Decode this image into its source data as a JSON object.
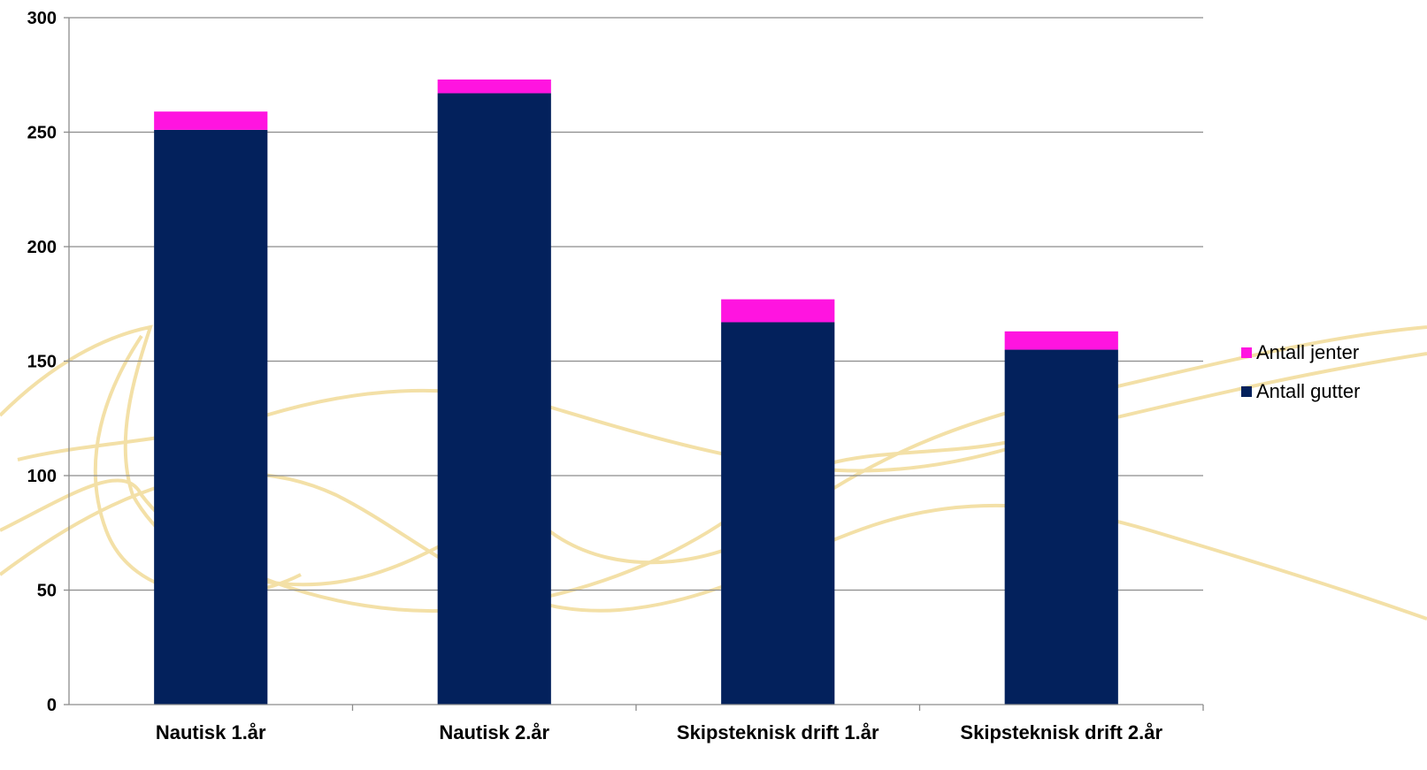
{
  "chart_data": {
    "type": "bar",
    "stacked": true,
    "categories": [
      "Nautisk 1.år",
      "Nautisk 2.år",
      "Skipsteknisk drift 1.år",
      "Skipsteknisk drift 2.år"
    ],
    "series": [
      {
        "name": "Antall gutter",
        "values": [
          251,
          267,
          167,
          155
        ],
        "color": "#03215c"
      },
      {
        "name": "Antall jenter",
        "values": [
          8,
          6,
          10,
          8
        ],
        "color": "#ff14e0"
      }
    ],
    "ylim": [
      0,
      300
    ],
    "yticks": [
      0,
      50,
      100,
      150,
      200,
      250,
      300
    ],
    "grid": true,
    "legend_position": "right",
    "legend_order": [
      "Antall jenter",
      "Antall gutter"
    ],
    "background_decoration": "gold swirl lines",
    "colors": {
      "gridline": "#8c8c8c",
      "axis": "#8c8c8c",
      "swirl": "#f0d68a"
    }
  }
}
